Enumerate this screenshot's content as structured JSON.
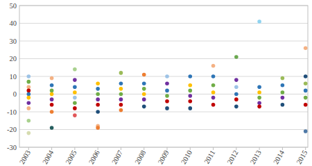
{
  "chart_data": {
    "type": "scatter",
    "x": [
      2003,
      2003,
      2003,
      2003,
      2003,
      2003,
      2003,
      2003,
      2003,
      2003,
      2004,
      2004,
      2004,
      2004,
      2004,
      2004,
      2004,
      2004,
      2005,
      2005,
      2005,
      2005,
      2005,
      2005,
      2005,
      2005,
      2006,
      2006,
      2006,
      2006,
      2006,
      2006,
      2006,
      2006,
      2007,
      2007,
      2007,
      2007,
      2007,
      2007,
      2007,
      2008,
      2008,
      2008,
      2008,
      2008,
      2008,
      2009,
      2009,
      2009,
      2009,
      2009,
      2009,
      2010,
      2010,
      2010,
      2010,
      2010,
      2010,
      2011,
      2011,
      2011,
      2011,
      2011,
      2011,
      2012,
      2012,
      2012,
      2012,
      2012,
      2012,
      2013,
      2013,
      2013,
      2013,
      2013,
      2013,
      2014,
      2014,
      2014,
      2014,
      2014,
      2015,
      2015,
      2015,
      2015,
      2015,
      2015,
      2015
    ],
    "values": [
      10,
      7,
      4,
      2,
      0,
      -2,
      -5,
      -8,
      -15,
      -22,
      9,
      5,
      2,
      0,
      -3,
      -6,
      -10,
      -19,
      14,
      8,
      4,
      1,
      -2,
      -5,
      -8,
      -12,
      6,
      3,
      0,
      -3,
      -6,
      -10,
      -18,
      -19,
      12,
      6,
      3,
      0,
      -3,
      -6,
      -9,
      11,
      6,
      3,
      0,
      -3,
      -7,
      10,
      6,
      2,
      -1,
      -4,
      -8,
      10,
      5,
      2,
      -1,
      -4,
      -8,
      16,
      10,
      5,
      1,
      -2,
      -6,
      21,
      8,
      4,
      0,
      -3,
      -7,
      41,
      4,
      1,
      -2,
      -5,
      -7,
      9,
      5,
      1,
      -2,
      -6,
      26,
      10,
      6,
      2,
      -2,
      -6,
      -21
    ],
    "colors": [
      "#9dc3e6",
      "#70ad47",
      "#f4b183",
      "#c00000",
      "#2e75b6",
      "#ffc000",
      "#7030a0",
      "#f4b183",
      "#a9d18e",
      "#d6dcb0",
      "#f4b183",
      "#2e75b6",
      "#70ad47",
      "#ffc000",
      "#7030a0",
      "#c00000",
      "#ed7d31",
      "#255e5e",
      "#a9d18e",
      "#7030a0",
      "#2e75b6",
      "#ffc000",
      "#9dc3e6",
      "#70ad47",
      "#c00000",
      "#e15759",
      "#ffc000",
      "#2e75b6",
      "#70ad47",
      "#7030a0",
      "#c00000",
      "#1f4e79",
      "#f4b183",
      "#ed7d31",
      "#9bbb59",
      "#2e75b6",
      "#ffc000",
      "#70ad47",
      "#7030a0",
      "#c00000",
      "#ed7d31",
      "#ed7d31",
      "#2e75b6",
      "#70ad47",
      "#ffc000",
      "#7030a0",
      "#1f4e79",
      "#9dc3e6",
      "#7030a0",
      "#2e75b6",
      "#70ad47",
      "#c00000",
      "#1f4e79",
      "#2e75b6",
      "#ffc000",
      "#70ad47",
      "#7030a0",
      "#c00000",
      "#1f4e79",
      "#f4b183",
      "#2e75b6",
      "#70ad47",
      "#ffc000",
      "#7030a0",
      "#c00000",
      "#6aa84f",
      "#7030a0",
      "#9dc3e6",
      "#2e75b6",
      "#c00000",
      "#1f4e79",
      "#8fd3f0",
      "#2e75b6",
      "#ffc000",
      "#70ad47",
      "#7030a0",
      "#c00000",
      "#9bbb59",
      "#2e75b6",
      "#70ad47",
      "#7030a0",
      "#1f4e79",
      "#f4b183",
      "#1f4e79",
      "#9bbb59",
      "#2e75b6",
      "#70ad47",
      "#c00000",
      "#4e79a7"
    ],
    "xlim": [
      2002.6,
      2015.1
    ],
    "xticks": [
      2003,
      2004,
      2005,
      2006,
      2007,
      2008,
      2009,
      2010,
      2011,
      2012,
      2013,
      2014,
      2015
    ],
    "ylim": [
      -30,
      50
    ],
    "yticks": [
      -30,
      -20,
      -10,
      0,
      10,
      20,
      30,
      40,
      50
    ],
    "grid": true
  }
}
